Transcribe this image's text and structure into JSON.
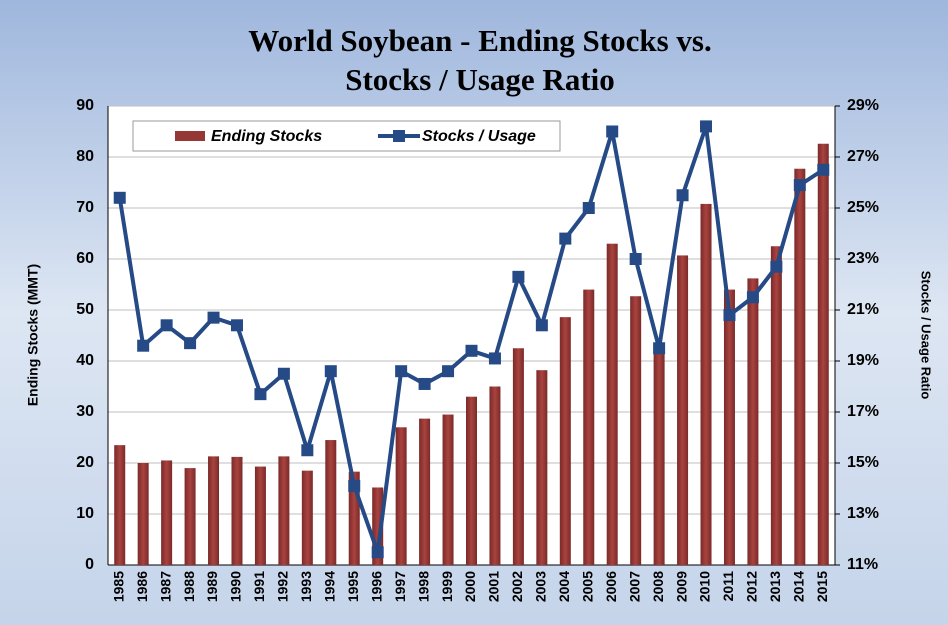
{
  "chart_data": {
    "type": "bar-line",
    "title": [
      "World Soybean - Ending Stocks vs.",
      "Stocks / Usage Ratio"
    ],
    "y_label": "Ending Stocks (MMT)",
    "y2_label": "Stocks / Usage Ratio",
    "categories": [
      "1985",
      "1986",
      "1987",
      "1988",
      "1989",
      "1990",
      "1991",
      "1992",
      "1993",
      "1994",
      "1995",
      "1996",
      "1997",
      "1998",
      "1999",
      "2000",
      "2001",
      "2002",
      "2003",
      "2004",
      "2005",
      "2006",
      "2007",
      "2008",
      "2009",
      "2010",
      "2011",
      "2012",
      "2013",
      "2014",
      "2015"
    ],
    "series": [
      {
        "name": "Ending Stocks",
        "type": "bar",
        "color": "#953735",
        "axis": "y",
        "values": [
          23.5,
          20,
          20.5,
          19,
          21.3,
          21.2,
          19.3,
          21.3,
          18.5,
          24.5,
          18.3,
          15.2,
          27,
          28.7,
          29.5,
          33,
          35,
          42.5,
          38.2,
          48.6,
          54,
          63,
          52.7,
          42.5,
          60.7,
          70.8,
          54,
          56.2,
          62.5,
          77.7,
          82.6
        ]
      },
      {
        "name": "Stocks / Usage",
        "type": "line",
        "color": "#254a86",
        "axis": "y2",
        "values": [
          25.4,
          19.6,
          20.4,
          19.7,
          20.7,
          20.4,
          17.7,
          18.5,
          15.5,
          18.6,
          14.1,
          11.5,
          18.6,
          18.1,
          18.6,
          19.4,
          19.1,
          22.3,
          20.4,
          23.8,
          25.0,
          28.0,
          23.0,
          19.5,
          25.5,
          28.2,
          20.8,
          21.5,
          22.7,
          25.9,
          26.5
        ]
      }
    ],
    "ylim": [
      0,
      90
    ],
    "yticks": [
      0,
      10,
      20,
      30,
      40,
      50,
      60,
      70,
      80,
      90
    ],
    "y2lim": [
      11,
      29
    ],
    "y2ticks": [
      {
        "value": 11,
        "label": "11%"
      },
      {
        "value": 13,
        "label": "13%"
      },
      {
        "value": 15,
        "label": "15%"
      },
      {
        "value": 17,
        "label": "17%"
      },
      {
        "value": 19,
        "label": "19%"
      },
      {
        "value": 21,
        "label": "21%"
      },
      {
        "value": 23,
        "label": "23%"
      },
      {
        "value": 25,
        "label": "25%"
      },
      {
        "value": 27,
        "label": "27%"
      },
      {
        "value": 29,
        "label": "29%"
      }
    ],
    "grid": true,
    "legend": "top-left"
  }
}
